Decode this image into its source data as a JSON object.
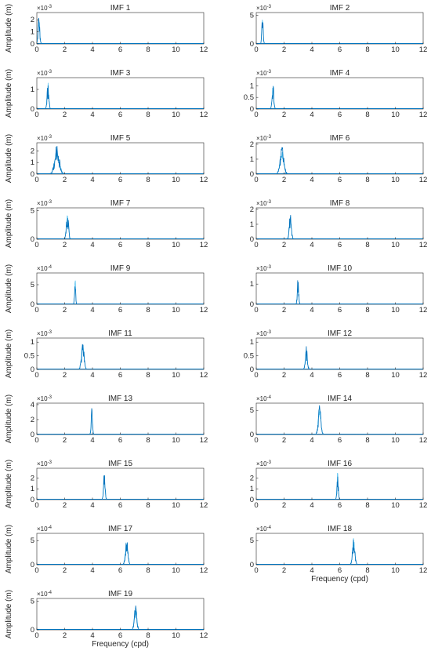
{
  "figure": {
    "ylabel": "Amplitude (m)",
    "xlabel": "Frequency (cpd)",
    "line_color": "#0072BD",
    "light_color": "#4DBEEE"
  },
  "chart_data": [
    {
      "type": "line",
      "title": "IMF 1",
      "xlim": [
        0,
        12
      ],
      "xticks": [
        0,
        2,
        4,
        6,
        8,
        10,
        12
      ],
      "exponent": "×10^-3",
      "yticks": [
        0,
        1,
        2
      ],
      "ylim": [
        0,
        2.6
      ],
      "peak_x": 0.15,
      "peak_y": 2.5,
      "width": 0.12,
      "ylabel": "Amplitude (m)",
      "xlabel": ""
    },
    {
      "type": "line",
      "title": "IMF 2",
      "xlim": [
        0,
        12
      ],
      "xticks": [
        0,
        2,
        4,
        6,
        8,
        10,
        12
      ],
      "exponent": "×10^-3",
      "yticks": [
        0,
        5
      ],
      "ylim": [
        0,
        5.5
      ],
      "peak_x": 0.45,
      "peak_y": 5.2,
      "width": 0.1,
      "ylabel": "",
      "xlabel": ""
    },
    {
      "type": "line",
      "title": "IMF 3",
      "xlim": [
        0,
        12
      ],
      "xticks": [
        0,
        2,
        4,
        6,
        8,
        10,
        12
      ],
      "exponent": "×10^-3",
      "yticks": [
        0,
        1
      ],
      "ylim": [
        0,
        1.6
      ],
      "peak_x": 0.8,
      "peak_y": 1.45,
      "width": 0.13,
      "ylabel": "Amplitude (m)",
      "xlabel": ""
    },
    {
      "type": "line",
      "title": "IMF 4",
      "xlim": [
        0,
        12
      ],
      "xticks": [
        0,
        2,
        4,
        6,
        8,
        10,
        12
      ],
      "exponent": "×10^-3",
      "yticks": [
        0,
        0.5,
        1
      ],
      "ylim": [
        0,
        1.35
      ],
      "peak_x": 1.2,
      "peak_y": 1.25,
      "width": 0.12,
      "ylabel": "",
      "xlabel": ""
    },
    {
      "type": "line",
      "title": "IMF 5",
      "xlim": [
        0,
        12
      ],
      "xticks": [
        0,
        2,
        4,
        6,
        8,
        10,
        12
      ],
      "exponent": "×10^-3",
      "yticks": [
        0,
        1,
        2
      ],
      "ylim": [
        0,
        2.7
      ],
      "peak_x": 1.45,
      "peak_y": 2.6,
      "width": 0.35,
      "ylabel": "Amplitude (m)",
      "xlabel": ""
    },
    {
      "type": "line",
      "title": "IMF 6",
      "xlim": [
        0,
        12
      ],
      "xticks": [
        0,
        2,
        4,
        6,
        8,
        10,
        12
      ],
      "exponent": "×10^-3",
      "yticks": [
        0,
        1,
        2
      ],
      "ylim": [
        0,
        2.1
      ],
      "peak_x": 1.85,
      "peak_y": 1.85,
      "width": 0.28,
      "ylabel": "",
      "xlabel": ""
    },
    {
      "type": "line",
      "title": "IMF 7",
      "xlim": [
        0,
        12
      ],
      "xticks": [
        0,
        2,
        4,
        6,
        8,
        10,
        12
      ],
      "exponent": "×10^-3",
      "yticks": [
        0,
        5
      ],
      "ylim": [
        0,
        5.5
      ],
      "peak_x": 2.2,
      "peak_y": 5.0,
      "width": 0.16,
      "ylabel": "Amplitude (m)",
      "xlabel": ""
    },
    {
      "type": "line",
      "title": "IMF 8",
      "xlim": [
        0,
        12
      ],
      "xticks": [
        0,
        2,
        4,
        6,
        8,
        10,
        12
      ],
      "exponent": "×10^-3",
      "yticks": [
        0,
        1,
        2
      ],
      "ylim": [
        0,
        2.1
      ],
      "peak_x": 2.45,
      "peak_y": 1.7,
      "width": 0.16,
      "ylabel": "",
      "xlabel": ""
    },
    {
      "type": "line",
      "title": "IMF 9",
      "xlim": [
        0,
        12
      ],
      "xticks": [
        0,
        2,
        4,
        6,
        8,
        10,
        12
      ],
      "exponent": "×10^-4",
      "yticks": [
        0,
        5
      ],
      "ylim": [
        0,
        8
      ],
      "peak_x": 2.75,
      "peak_y": 7.5,
      "width": 0.08,
      "ylabel": "Amplitude (m)",
      "xlabel": ""
    },
    {
      "type": "line",
      "title": "IMF 10",
      "xlim": [
        0,
        12
      ],
      "xticks": [
        0,
        2,
        4,
        6,
        8,
        10,
        12
      ],
      "exponent": "×10^-3",
      "yticks": [
        0,
        1
      ],
      "ylim": [
        0,
        1.55
      ],
      "peak_x": 3.0,
      "peak_y": 1.45,
      "width": 0.1,
      "ylabel": "",
      "xlabel": ""
    },
    {
      "type": "line",
      "title": "IMF 11",
      "xlim": [
        0,
        12
      ],
      "xticks": [
        0,
        2,
        4,
        6,
        8,
        10,
        12
      ],
      "exponent": "×10^-3",
      "yticks": [
        0,
        0.5,
        1
      ],
      "ylim": [
        0,
        1.15
      ],
      "peak_x": 3.3,
      "peak_y": 1.05,
      "width": 0.2,
      "ylabel": "Amplitude (m)",
      "xlabel": ""
    },
    {
      "type": "line",
      "title": "IMF 12",
      "xlim": [
        0,
        12
      ],
      "xticks": [
        0,
        2,
        4,
        6,
        8,
        10,
        12
      ],
      "exponent": "×10^-3",
      "yticks": [
        0,
        0.5,
        1
      ],
      "ylim": [
        0,
        1.15
      ],
      "peak_x": 3.6,
      "peak_y": 0.85,
      "width": 0.15,
      "ylabel": "",
      "xlabel": ""
    },
    {
      "type": "line",
      "title": "IMF 13",
      "xlim": [
        0,
        12
      ],
      "xticks": [
        0,
        2,
        4,
        6,
        8,
        10,
        12
      ],
      "exponent": "×10^-3",
      "yticks": [
        0,
        2,
        4
      ],
      "ylim": [
        0,
        4.2
      ],
      "peak_x": 3.95,
      "peak_y": 3.8,
      "width": 0.1,
      "ylabel": "Amplitude (m)",
      "xlabel": ""
    },
    {
      "type": "line",
      "title": "IMF 14",
      "xlim": [
        0,
        12
      ],
      "xticks": [
        0,
        2,
        4,
        6,
        8,
        10,
        12
      ],
      "exponent": "×10^-4",
      "yticks": [
        0,
        5
      ],
      "ylim": [
        0,
        6.5
      ],
      "peak_x": 4.55,
      "peak_y": 6.0,
      "width": 0.2,
      "ylabel": "",
      "xlabel": ""
    },
    {
      "type": "line",
      "title": "IMF 15",
      "xlim": [
        0,
        12
      ],
      "xticks": [
        0,
        2,
        4,
        6,
        8,
        10,
        12
      ],
      "exponent": "×10^-3",
      "yticks": [
        0,
        1,
        2
      ],
      "ylim": [
        0,
        2.9
      ],
      "peak_x": 4.85,
      "peak_y": 2.6,
      "width": 0.12,
      "ylabel": "Amplitude (m)",
      "xlabel": ""
    },
    {
      "type": "line",
      "title": "IMF 16",
      "xlim": [
        0,
        12
      ],
      "xticks": [
        0,
        2,
        4,
        6,
        8,
        10,
        12
      ],
      "exponent": "×10^-3",
      "yticks": [
        0,
        1,
        2
      ],
      "ylim": [
        0,
        2.9
      ],
      "peak_x": 5.85,
      "peak_y": 2.75,
      "width": 0.1,
      "ylabel": "",
      "xlabel": ""
    },
    {
      "type": "line",
      "title": "IMF 17",
      "xlim": [
        0,
        12
      ],
      "xticks": [
        0,
        2,
        4,
        6,
        8,
        10,
        12
      ],
      "exponent": "×10^-4",
      "yticks": [
        0,
        5
      ],
      "ylim": [
        0,
        6.5
      ],
      "peak_x": 6.45,
      "peak_y": 6.0,
      "width": 0.18,
      "ylabel": "Amplitude (m)",
      "xlabel": ""
    },
    {
      "type": "line",
      "title": "IMF 18",
      "xlim": [
        0,
        12
      ],
      "xticks": [
        0,
        2,
        4,
        6,
        8,
        10,
        12
      ],
      "exponent": "×10^-4",
      "yticks": [
        0,
        5
      ],
      "ylim": [
        0,
        6.5
      ],
      "peak_x": 7.0,
      "peak_y": 6.0,
      "width": 0.18,
      "ylabel": "",
      "xlabel": "Frequency (cpd)"
    },
    {
      "type": "line",
      "title": "IMF 19",
      "xlim": [
        0,
        12
      ],
      "xticks": [
        0,
        2,
        4,
        6,
        8,
        10,
        12
      ],
      "exponent": "×10^-4",
      "yticks": [
        0,
        5
      ],
      "ylim": [
        0,
        5.5
      ],
      "peak_x": 7.1,
      "peak_y": 4.4,
      "width": 0.18,
      "ylabel": "Amplitude (m)",
      "xlabel": "Frequency (cpd)"
    }
  ]
}
